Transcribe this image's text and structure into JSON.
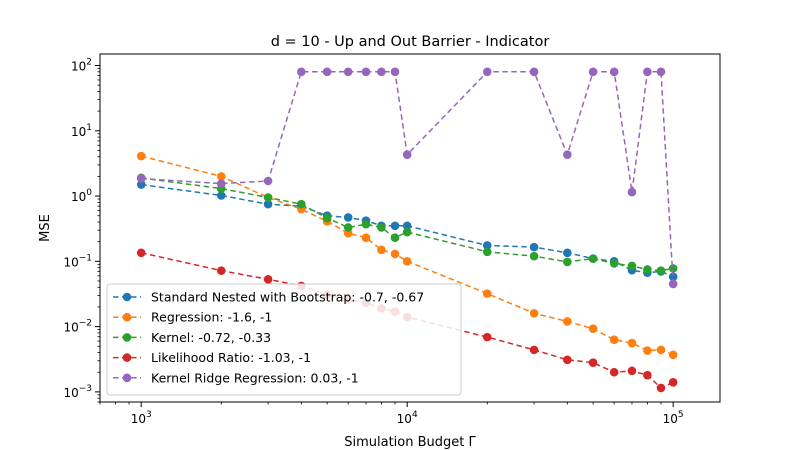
{
  "chart_data": {
    "type": "line",
    "title": "d = 10 - Up and Out Barrier - Indicator",
    "xlabel": "Simulation Budget Γ",
    "ylabel": "MSE",
    "xscale": "log",
    "yscale": "log",
    "xlim": [
      700,
      150000
    ],
    "ylim": [
      0.0007,
      150
    ],
    "xticks": [
      {
        "value": 1000,
        "base": "10",
        "exp": "3"
      },
      {
        "value": 10000,
        "base": "10",
        "exp": "4"
      },
      {
        "value": 100000,
        "base": "10",
        "exp": "5"
      }
    ],
    "yticks": [
      {
        "value": 0.001,
        "base": "10",
        "exp": "−3"
      },
      {
        "value": 0.01,
        "base": "10",
        "exp": "−2"
      },
      {
        "value": 0.1,
        "base": "10",
        "exp": "−1"
      },
      {
        "value": 1,
        "base": "10",
        "exp": "0"
      },
      {
        "value": 10,
        "base": "10",
        "exp": "1"
      },
      {
        "value": 100,
        "base": "10",
        "exp": "2"
      }
    ],
    "legend_position": "lower-left",
    "x": [
      1000,
      2000,
      3000,
      4000,
      5000,
      6000,
      7000,
      8000,
      9000,
      10000,
      20000,
      30000,
      40000,
      50000,
      60000,
      70000,
      80000,
      90000,
      100000
    ],
    "series": [
      {
        "name": "Standard Nested with Bootstrap: -0.7, -0.67",
        "color": "#1f77b4",
        "values": [
          1.5,
          1.02,
          0.75,
          0.7,
          0.5,
          0.47,
          0.42,
          0.35,
          0.35,
          0.35,
          0.175,
          0.165,
          0.135,
          0.11,
          0.1,
          0.073,
          0.067,
          0.07,
          0.058
        ]
      },
      {
        "name": "Regression: -1.6, -1",
        "color": "#ff7f0e",
        "values": [
          4.1,
          2.0,
          0.95,
          0.63,
          0.41,
          0.27,
          0.23,
          0.15,
          0.13,
          0.1,
          0.032,
          0.016,
          0.012,
          0.0093,
          0.0063,
          0.0056,
          0.0043,
          0.0044,
          0.0037
        ]
      },
      {
        "name": "Kernel: -0.72, -0.33",
        "color": "#2ca02c",
        "values": [
          1.9,
          1.3,
          0.95,
          0.75,
          0.46,
          0.33,
          0.37,
          0.33,
          0.23,
          0.28,
          0.14,
          0.12,
          0.098,
          0.11,
          0.093,
          0.085,
          0.075,
          0.072,
          0.078
        ]
      },
      {
        "name": "Likelihood Ratio: -1.03, -1",
        "color": "#d62728",
        "values": [
          0.135,
          0.072,
          0.053,
          0.042,
          0.031,
          0.026,
          0.023,
          0.019,
          0.017,
          0.014,
          0.0069,
          0.0044,
          0.0031,
          0.0028,
          0.002,
          0.0021,
          0.0018,
          0.00115,
          0.0014
        ]
      },
      {
        "name": "Kernel Ridge Regression: 0.03, -1",
        "color": "#9467bd",
        "values": [
          1.85,
          1.55,
          1.7,
          80,
          80,
          80,
          80,
          80,
          80,
          4.3,
          80,
          80,
          4.3,
          80,
          80,
          1.15,
          80,
          80,
          0.045
        ]
      }
    ]
  }
}
